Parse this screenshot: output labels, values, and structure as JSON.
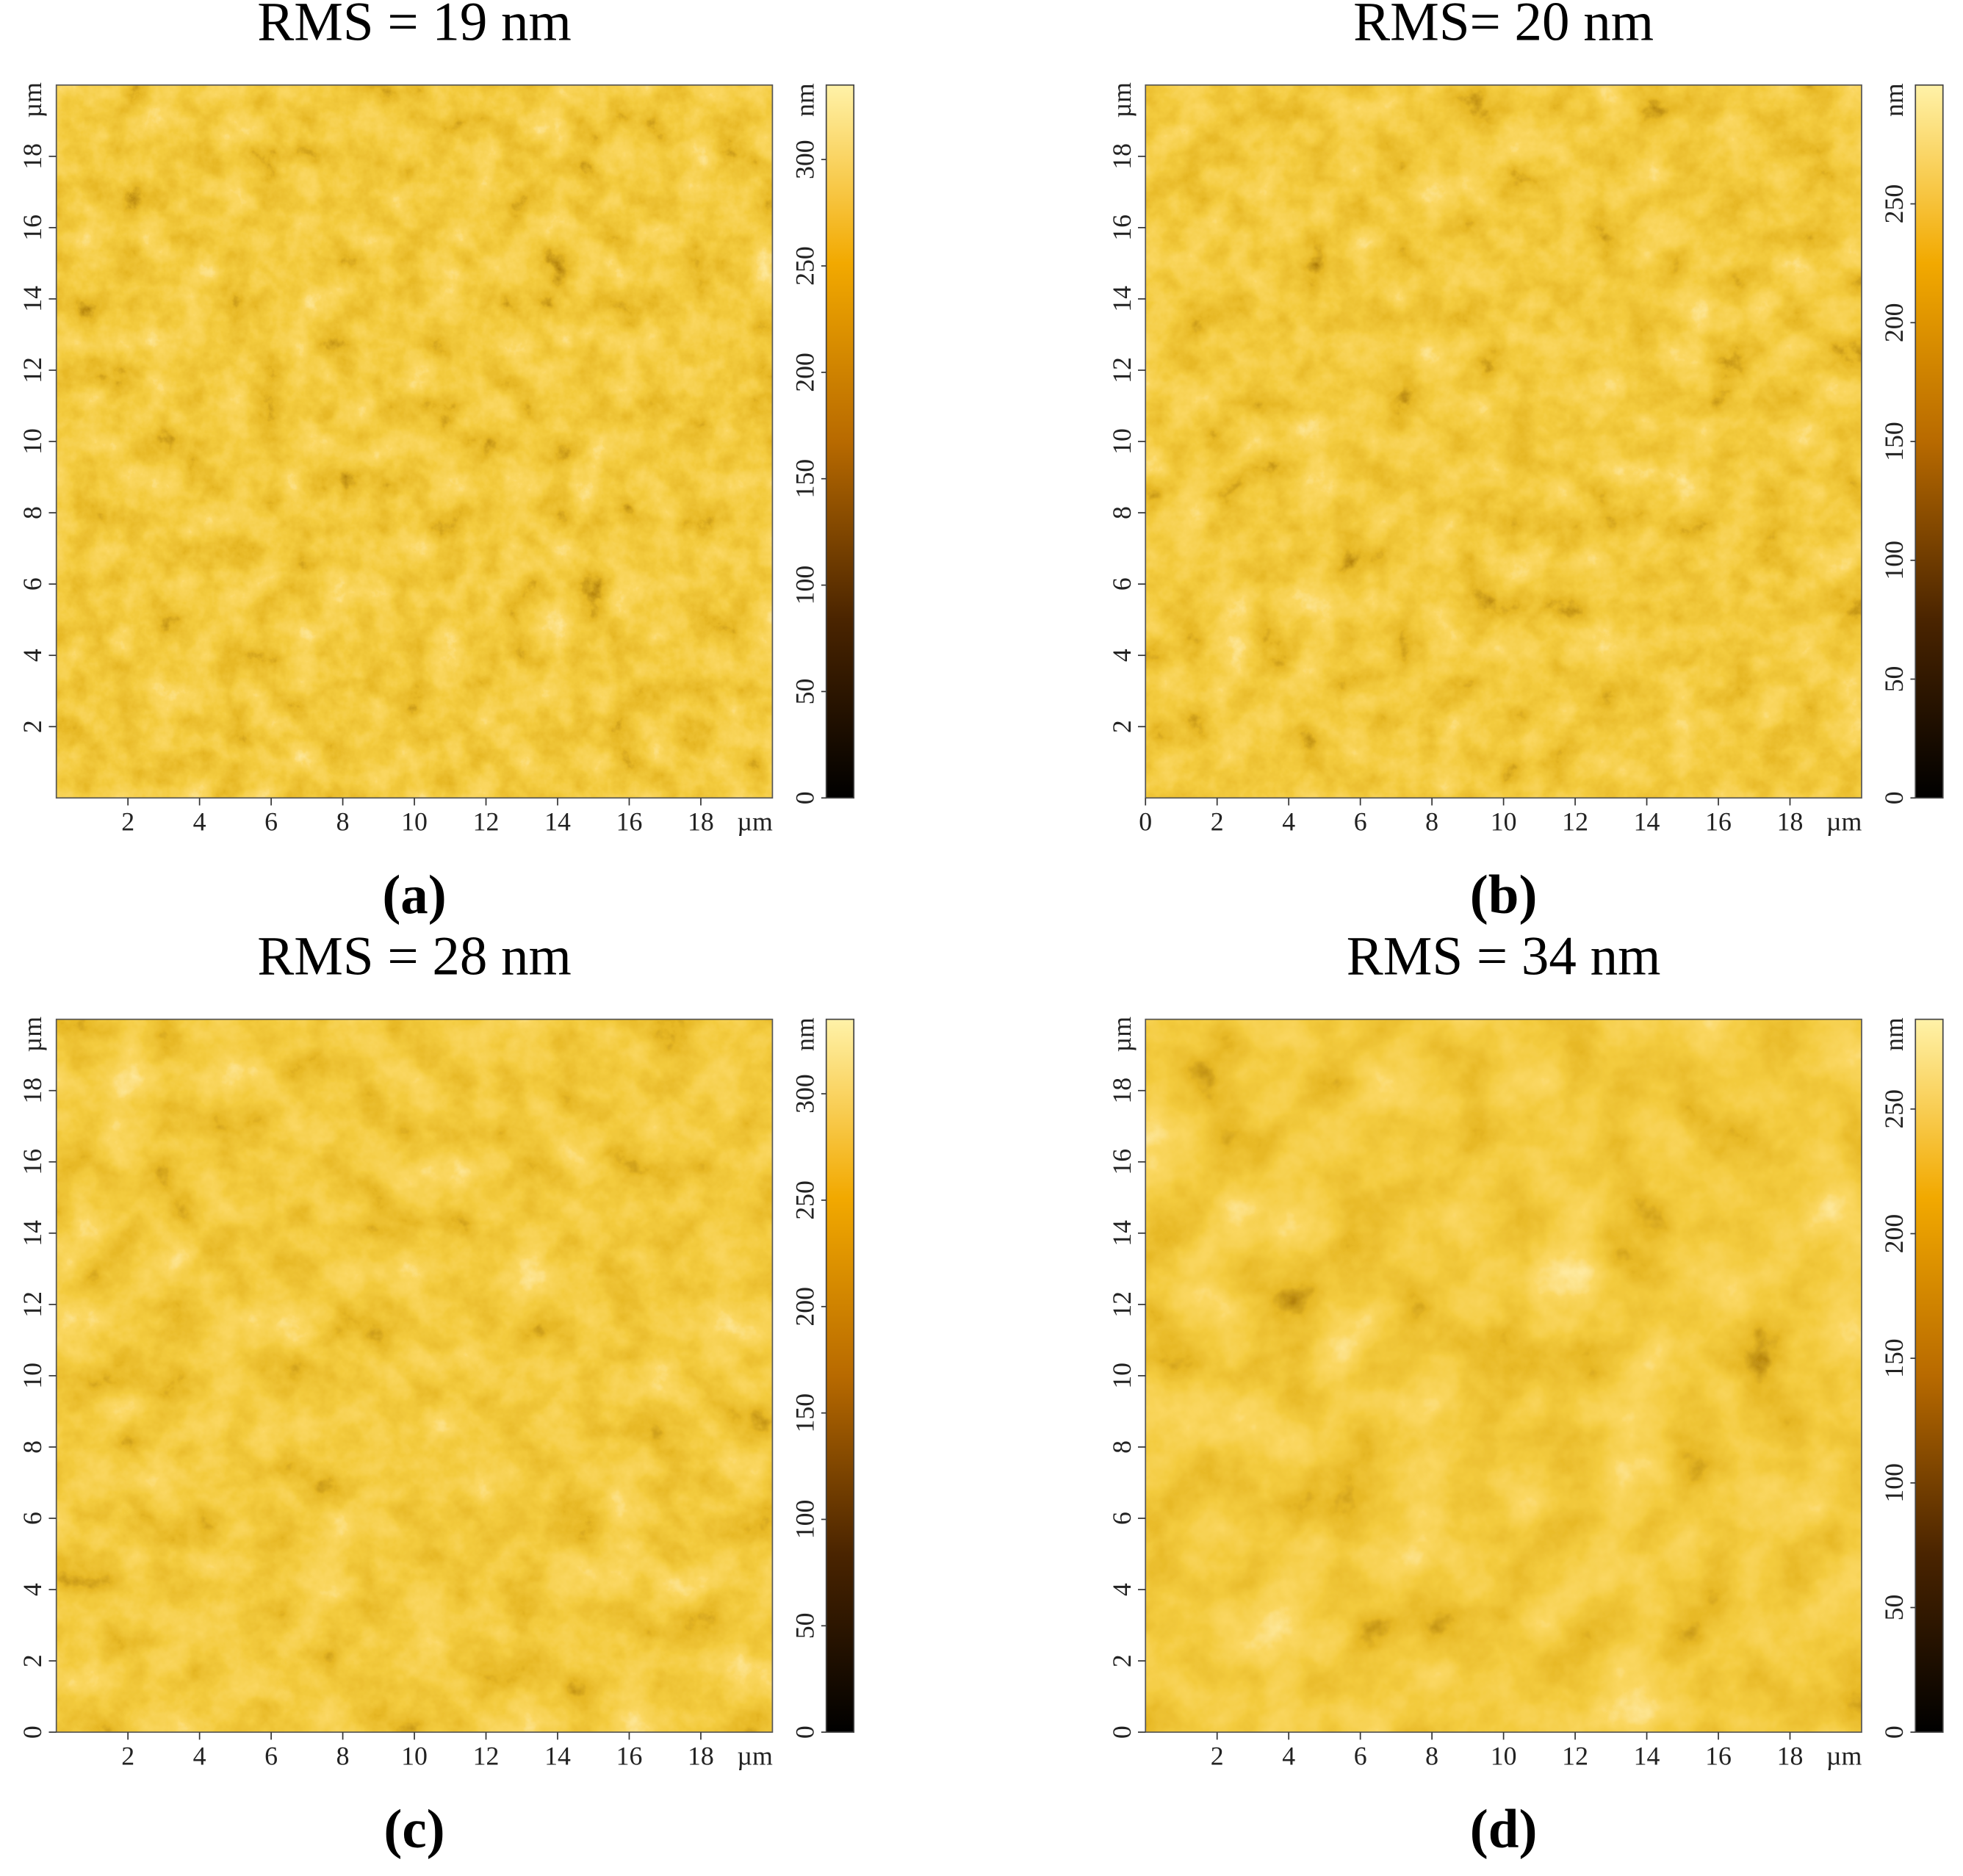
{
  "panels": [
    {
      "title": "RMS = 19 nm",
      "caption": "(a)",
      "x_axis": {
        "range": [
          0,
          20
        ],
        "ticks": [
          2,
          4,
          6,
          8,
          10,
          12,
          14,
          16,
          18
        ],
        "unit": "µm"
      },
      "y_axis": {
        "range": [
          0,
          20
        ],
        "ticks": [
          2,
          4,
          6,
          8,
          10,
          12,
          14,
          16,
          18
        ],
        "unit": "µm"
      },
      "colorbar": {
        "range": [
          0,
          335
        ],
        "ticks": [
          0,
          50,
          100,
          150,
          200,
          250,
          300
        ],
        "unit": "nm"
      }
    },
    {
      "title": "RMS= 20 nm",
      "caption": "(b)",
      "x_axis": {
        "range": [
          0,
          20
        ],
        "ticks": [
          0,
          2,
          4,
          6,
          8,
          10,
          12,
          14,
          16,
          18
        ],
        "unit": "µm"
      },
      "y_axis": {
        "range": [
          0,
          20
        ],
        "ticks": [
          2,
          4,
          6,
          8,
          10,
          12,
          14,
          16,
          18
        ],
        "unit": "µm"
      },
      "colorbar": {
        "range": [
          0,
          300
        ],
        "ticks": [
          0,
          50,
          100,
          150,
          200,
          250
        ],
        "unit": "nm"
      }
    },
    {
      "title": "RMS = 28 nm",
      "caption": "(c)",
      "x_axis": {
        "range": [
          0,
          20
        ],
        "ticks": [
          2,
          4,
          6,
          8,
          10,
          12,
          14,
          16,
          18
        ],
        "unit": "µm"
      },
      "y_axis": {
        "range": [
          0,
          20
        ],
        "ticks": [
          0,
          2,
          4,
          6,
          8,
          10,
          12,
          14,
          16,
          18
        ],
        "unit": "µm"
      },
      "colorbar": {
        "range": [
          0,
          335
        ],
        "ticks": [
          0,
          50,
          100,
          150,
          200,
          250,
          300
        ],
        "unit": "nm"
      }
    },
    {
      "title": "RMS = 34 nm",
      "caption": "(d)",
      "x_axis": {
        "range": [
          0,
          20
        ],
        "ticks": [
          2,
          4,
          6,
          8,
          10,
          12,
          14,
          16,
          18
        ],
        "unit": "µm"
      },
      "y_axis": {
        "range": [
          0,
          20
        ],
        "ticks": [
          0,
          2,
          4,
          6,
          8,
          10,
          12,
          14,
          16,
          18
        ],
        "unit": "µm"
      },
      "colorbar": {
        "range": [
          0,
          286
        ],
        "ticks": [
          0,
          50,
          100,
          150,
          200,
          250
        ],
        "unit": "nm"
      }
    }
  ]
}
